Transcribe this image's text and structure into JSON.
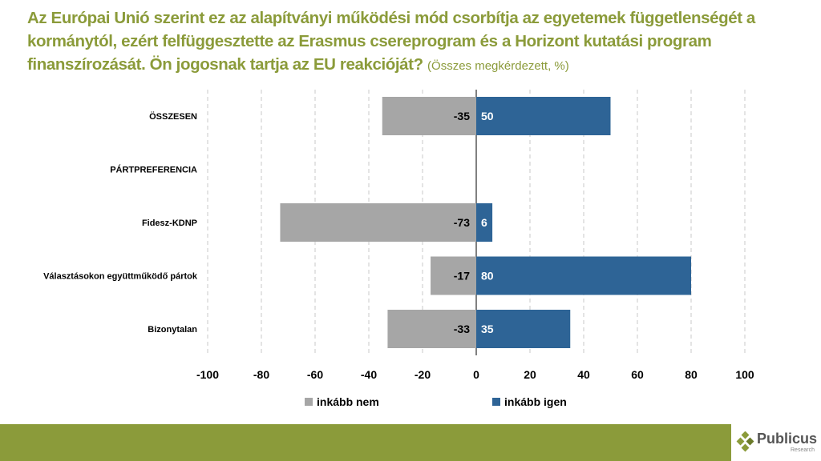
{
  "title": {
    "main": "Az Európai Unió szerint ez az alapítványi működési mód csorbítja az egyetemek függetlenségét a kormánytól, ezért felfüggesztette az Erasmus csereprogram és a Horizont kutatási program finanszírozását. Ön jogosnak tartja az EU reakcióját?",
    "sub": "(Összes megkérdezett, %)"
  },
  "chart_data": {
    "type": "bar",
    "orientation": "horizontal",
    "stacked": "diverging",
    "categories": [
      "ÖSSZESEN",
      "PÁRTPREFERENCIA",
      "Fidesz-KDNP",
      "Választásokon együttműködő pártok",
      "Bizonytalan"
    ],
    "series": [
      {
        "name": "inkább nem",
        "color": "#a6a6a6",
        "values": [
          -35,
          null,
          -73,
          -17,
          -33
        ]
      },
      {
        "name": "inkább igen",
        "color": "#2e6496",
        "values": [
          50,
          null,
          6,
          80,
          35
        ]
      }
    ],
    "xlim": [
      -100,
      100
    ],
    "xticks": [
      -100,
      -80,
      -60,
      -40,
      -20,
      0,
      20,
      40,
      60,
      80,
      100
    ],
    "grid": true,
    "legend": "bottom"
  },
  "logo": {
    "name": "Publicus",
    "sub": "Research"
  }
}
